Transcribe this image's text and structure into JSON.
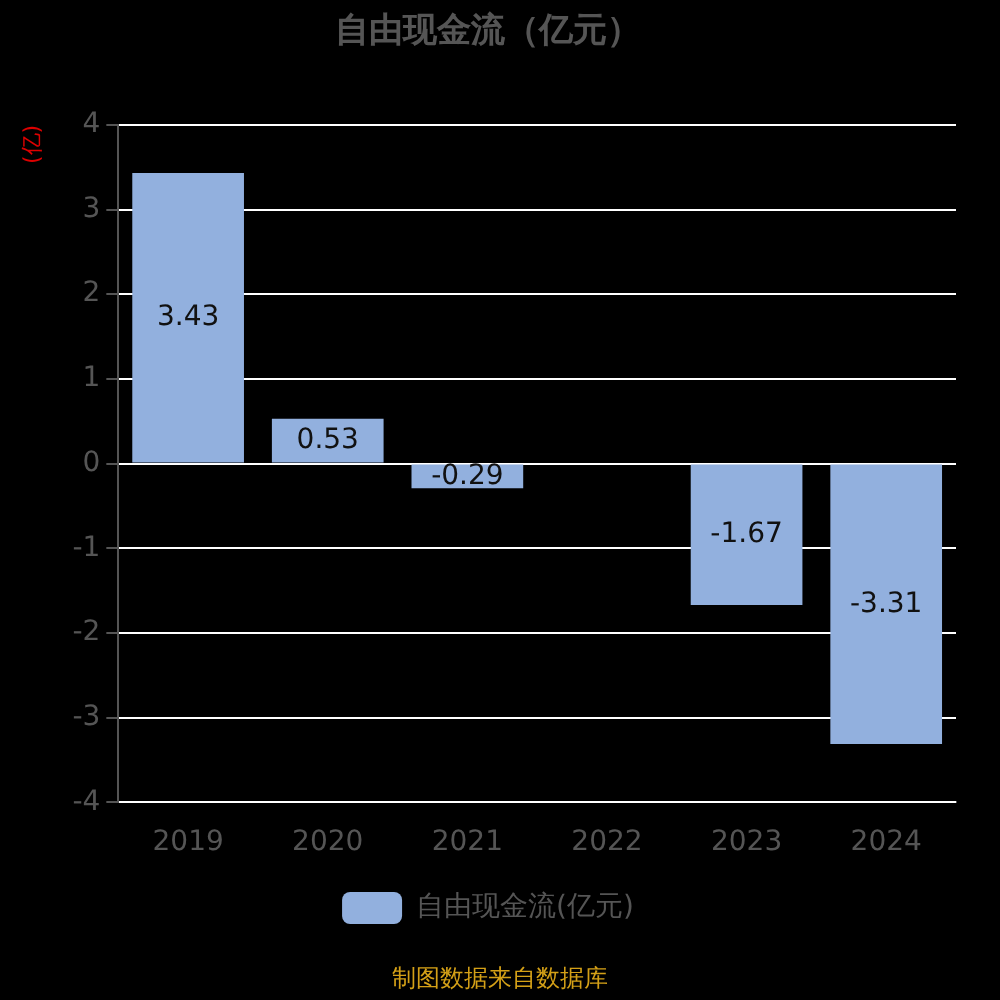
{
  "chart_data": {
    "type": "bar",
    "title": "自由现金流（亿元）",
    "ylabel": "(亿)",
    "categories": [
      "2019",
      "2020",
      "2021",
      "2022",
      "2023",
      "2024"
    ],
    "series": [
      {
        "name": "自由现金流(亿元)",
        "color": "#92b0de",
        "values": [
          3.43,
          0.53,
          -0.29,
          0,
          -1.67,
          -3.31
        ]
      }
    ],
    "value_labels": [
      "3.43",
      "0.53",
      "-0.29",
      null,
      "-1.67",
      "-3.31"
    ],
    "ylim": [
      -4,
      4
    ],
    "yticks": [
      -4,
      -3,
      -2,
      -1,
      0,
      1,
      2,
      3,
      4
    ],
    "grid": "y",
    "legend": "bottom",
    "annotations": [
      "制图数据来自数据库"
    ]
  }
}
